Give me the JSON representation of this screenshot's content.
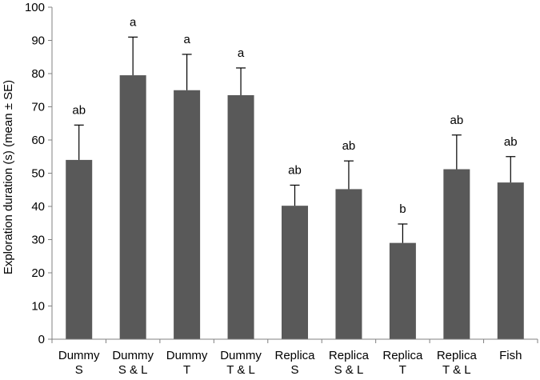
{
  "chart_data": {
    "type": "bar",
    "categories": [
      [
        "Dummy",
        "S"
      ],
      [
        "Dummy",
        "S & L"
      ],
      [
        "Dummy",
        "T"
      ],
      [
        "Dummy",
        "T & L"
      ],
      [
        "Replica",
        "S"
      ],
      [
        "Replica",
        "S & L"
      ],
      [
        "Replica",
        "T"
      ],
      [
        "Replica",
        "T & L"
      ],
      [
        "Fish",
        ""
      ]
    ],
    "values": [
      54,
      79.5,
      75,
      73.5,
      40.2,
      45.2,
      29,
      51.2,
      47.2
    ],
    "errors": [
      10.5,
      11.5,
      10.8,
      8.2,
      6.2,
      8.5,
      5.7,
      10.3,
      7.8
    ],
    "significance": [
      "ab",
      "a",
      "a",
      "a",
      "ab",
      "ab",
      "b",
      "ab",
      "ab"
    ],
    "ylabel": "Exploration duration (s) (mean ± SE)",
    "xlabel": "",
    "ylim": [
      0,
      100
    ],
    "yticks": [
      0,
      10,
      20,
      30,
      40,
      50,
      60,
      70,
      80,
      90,
      100
    ],
    "grid": false,
    "legend": "none",
    "bar_color": "#595959",
    "axis_color": "#808080"
  }
}
